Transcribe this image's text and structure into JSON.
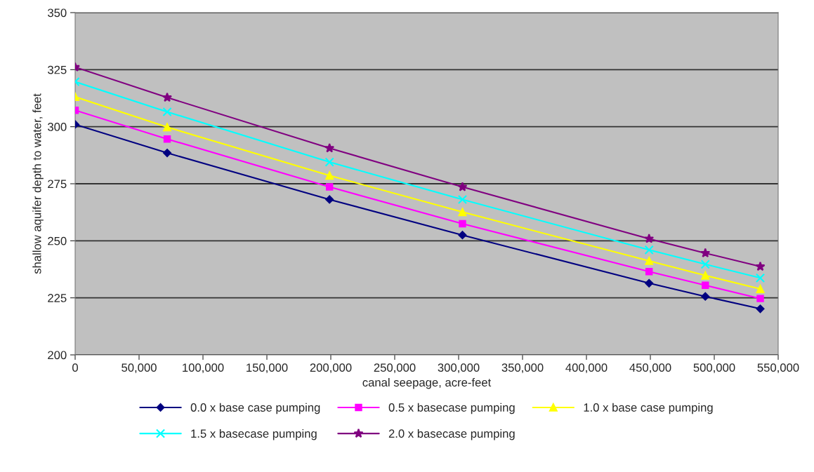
{
  "chart_data": {
    "type": "line",
    "xlabel": "canal seepage, acre-feet",
    "ylabel": "shallow aquifer depth to water, feet",
    "x": [
      0,
      72000,
      199000,
      303000,
      449000,
      493000,
      536000
    ],
    "series": [
      {
        "name": "0.0 x base case pumping",
        "color": "#000080",
        "marker": "diamond",
        "values": [
          301.0,
          288.5,
          268.1,
          252.5,
          231.4,
          225.6,
          220.2
        ]
      },
      {
        "name": "0.5 x basecase pumping",
        "color": "#ff00ff",
        "marker": "square",
        "values": [
          307.2,
          294.6,
          273.6,
          257.5,
          236.5,
          230.5,
          224.7
        ]
      },
      {
        "name": "1.0 x base case pumping",
        "color": "#ffff00",
        "marker": "triangle",
        "values": [
          313.1,
          299.8,
          278.6,
          262.6,
          241.2,
          234.8,
          228.9
        ]
      },
      {
        "name": "1.5 x basecase pumping",
        "color": "#00ffff",
        "marker": "cross",
        "values": [
          319.7,
          306.5,
          284.5,
          268.1,
          246.0,
          239.7,
          233.7
        ]
      },
      {
        "name": "2.0 x basecase pumping",
        "color": "#800080",
        "marker": "star",
        "values": [
          326.1,
          312.8,
          290.6,
          273.6,
          250.9,
          244.6,
          238.7
        ]
      }
    ],
    "xlim": [
      0,
      550000
    ],
    "xticks": [
      0,
      {
        "value": 50000,
        "label": "50,000"
      },
      {
        "value": 100000,
        "label": "100,000"
      },
      {
        "value": 150000,
        "label": "150,000"
      },
      {
        "value": 200000,
        "label": "200,000"
      },
      {
        "value": 250000,
        "label": "250,000"
      },
      {
        "value": 300000,
        "label": "300,000"
      },
      {
        "value": 350000,
        "label": "350,000"
      },
      {
        "value": 400000,
        "label": "400,000"
      },
      {
        "value": 450000,
        "label": "450,000"
      },
      {
        "value": 500000,
        "label": "500,000"
      },
      {
        "value": 550000,
        "label": "550,000"
      }
    ],
    "ylim": [
      200,
      350
    ],
    "yticks": [
      200,
      225,
      250,
      275,
      300,
      325,
      350
    ],
    "grid": "y",
    "legend": "bottom"
  }
}
